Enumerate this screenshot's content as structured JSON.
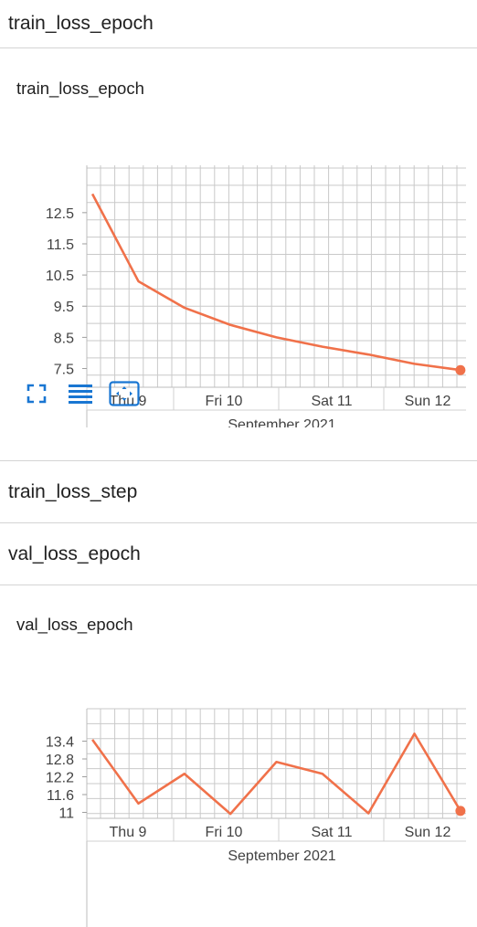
{
  "sections": [
    {
      "title": "train_loss_epoch"
    },
    {
      "title": "train_loss_step"
    },
    {
      "title": "val_loss_epoch"
    }
  ],
  "toolbar": {
    "icons": [
      "fullscreen-icon",
      "toggle-log-scale-icon",
      "fit-domain-icon"
    ],
    "accent_color": "#1976d2"
  },
  "chart_data": [
    {
      "type": "line",
      "title": "train_loss_epoch",
      "x_axis_ticks": [
        "Thu 9",
        "Fri 10",
        "Sat 11",
        "Sun 12"
      ],
      "x_axis_label": "September 2021",
      "y_ticks": [
        "12.5",
        "11.5",
        "10.5",
        "9.5",
        "8.5",
        "7.5"
      ],
      "ylim": [
        6.9,
        13.55
      ],
      "x": [
        "2021-09-08 22:00",
        "2021-09-09 09:00",
        "2021-09-09 20:00",
        "2021-09-10 07:00",
        "2021-09-10 18:00",
        "2021-09-11 05:00",
        "2021-09-11 16:00",
        "2021-09-12 03:00",
        "2021-09-12 14:00"
      ],
      "series": [
        {
          "values": [
            13.1,
            10.3,
            9.45,
            8.9,
            8.5,
            8.2,
            7.95,
            7.65,
            7.45
          ]
        }
      ],
      "line_color": "#f0714a",
      "grid": true
    },
    {
      "type": "line",
      "title": "val_loss_epoch",
      "x_axis_ticks": [
        "Thu 9",
        "Fri 10",
        "Sat 11",
        "Sun 12"
      ],
      "x_axis_label": "September 2021",
      "y_ticks": [
        "13.4",
        "12.8",
        "12.2",
        "11.6",
        "11"
      ],
      "ylim": [
        10.8,
        14.0
      ],
      "x": [
        "2021-09-08 22:00",
        "2021-09-09 09:00",
        "2021-09-09 20:00",
        "2021-09-10 07:00",
        "2021-09-10 18:00",
        "2021-09-11 05:00",
        "2021-09-11 16:00",
        "2021-09-12 03:00",
        "2021-09-12 14:00"
      ],
      "series": [
        {
          "values": [
            13.45,
            11.3,
            12.3,
            10.95,
            12.7,
            12.3,
            10.97,
            13.65,
            11.05
          ]
        }
      ],
      "line_color": "#f0714a",
      "grid": true
    }
  ]
}
